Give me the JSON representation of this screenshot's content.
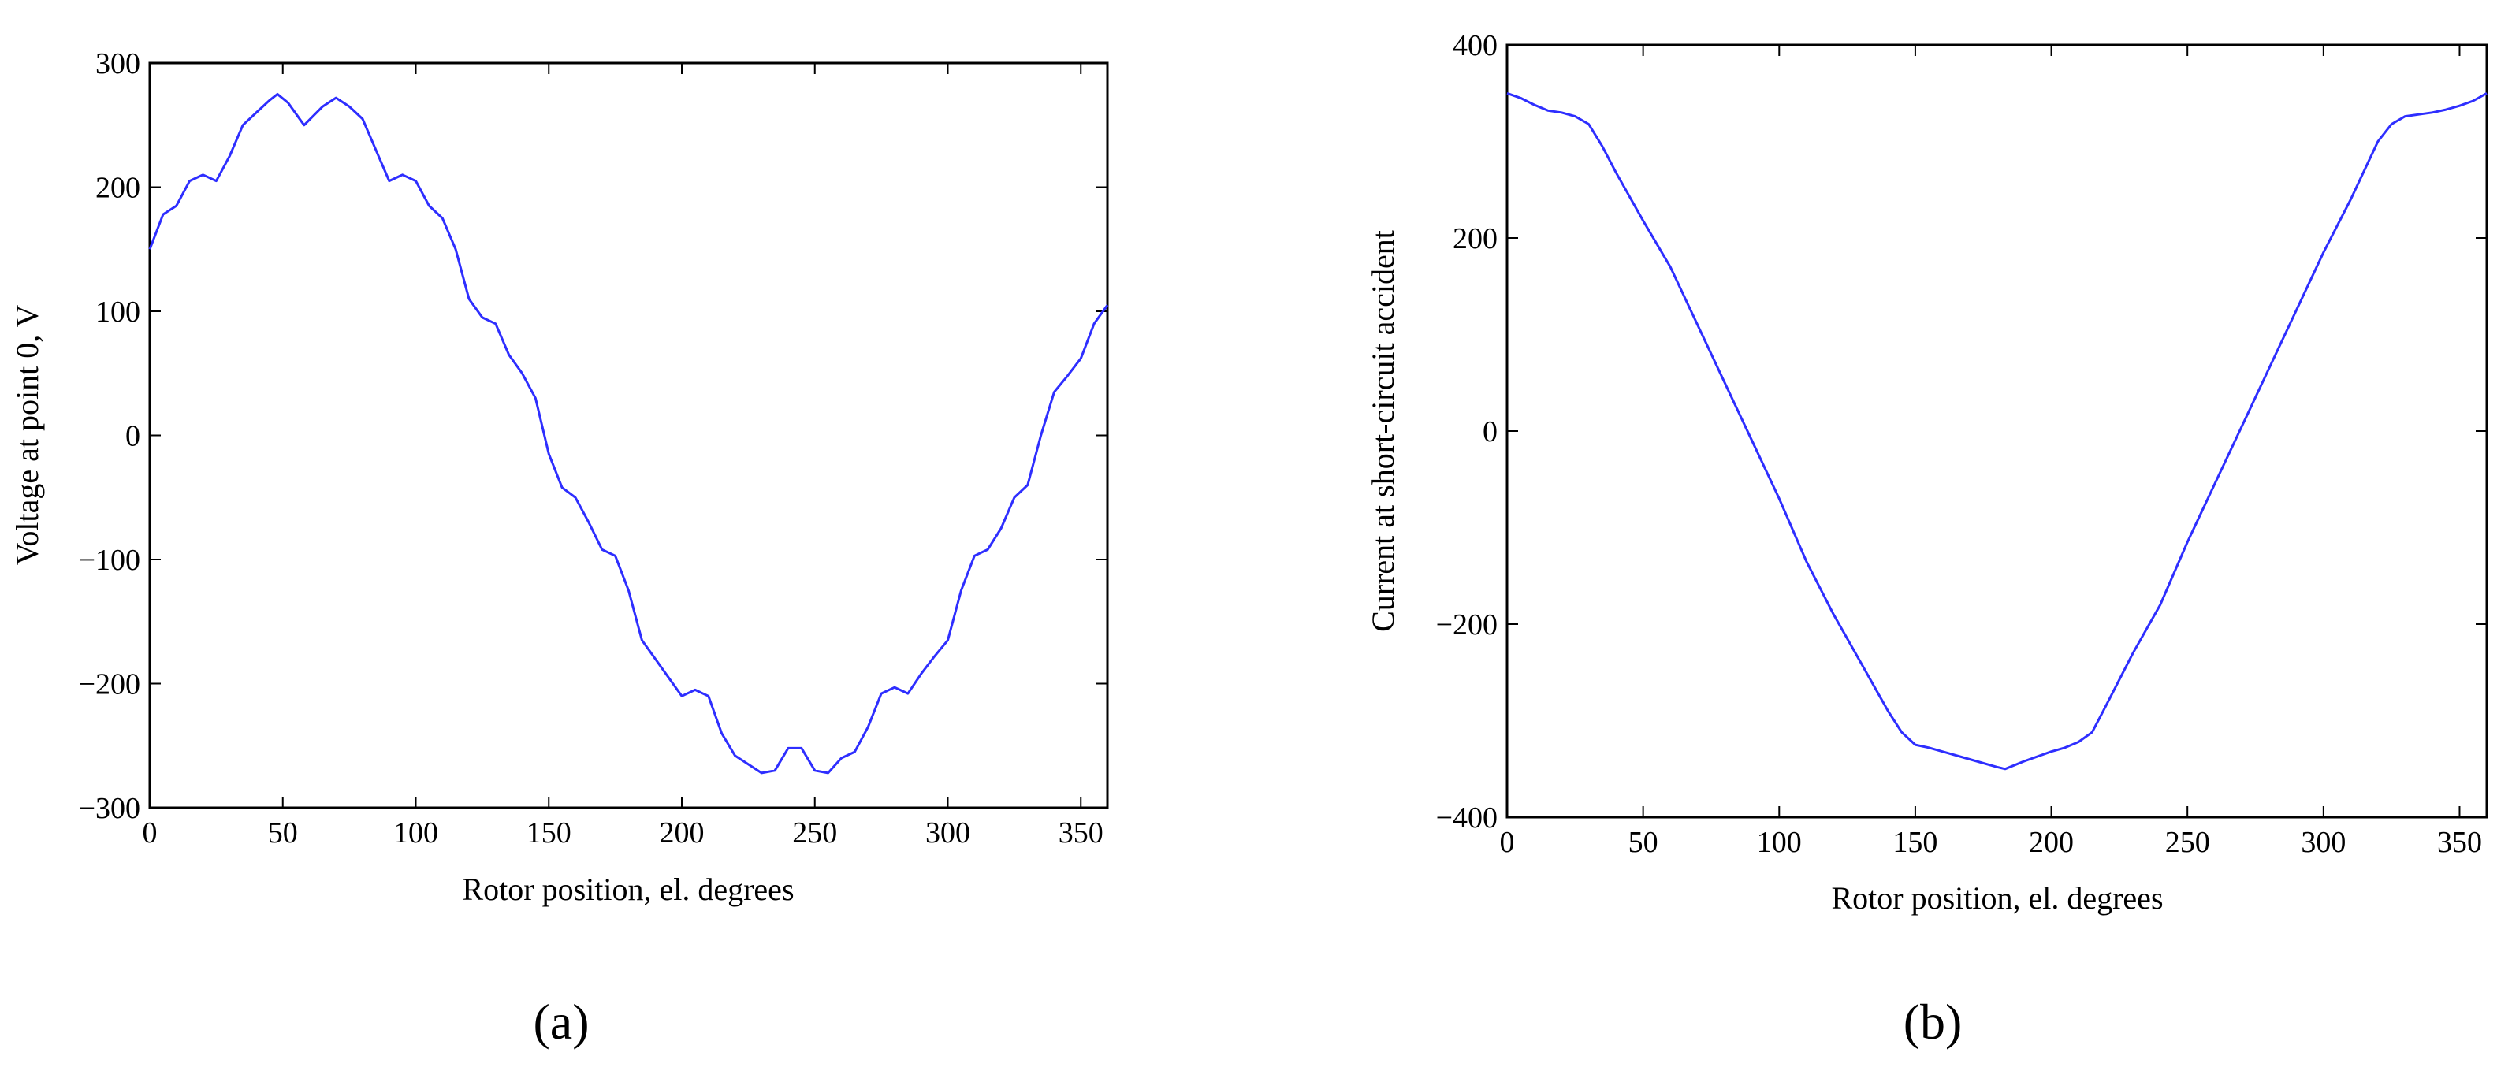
{
  "chart_data": [
    {
      "type": "line",
      "panel_label": "(a)",
      "xlabel": "Rotor position, el. degrees",
      "ylabel": "Voltage at point 0, V",
      "xlim": [
        0,
        360
      ],
      "ylim": [
        -300,
        300
      ],
      "xticks": [
        0,
        50,
        100,
        150,
        200,
        250,
        300,
        350
      ],
      "yticks": [
        -300,
        -200,
        -100,
        0,
        100,
        200,
        300
      ],
      "xtick_labels": [
        "0",
        "50",
        "100",
        "150",
        "200",
        "250",
        "300",
        "350"
      ],
      "ytick_labels": [
        "−300",
        "−200",
        "−100",
        "0",
        "100",
        "200",
        "300"
      ],
      "grid": false,
      "series": [
        {
          "color": "#2e2eff",
          "x": [
            0,
            5,
            10,
            15,
            20,
            25,
            30,
            35,
            40,
            45,
            48,
            52,
            58,
            65,
            70,
            75,
            80,
            85,
            90,
            95,
            100,
            105,
            110,
            115,
            120,
            125,
            130,
            135,
            140,
            145,
            150,
            155,
            160,
            165,
            170,
            175,
            180,
            185,
            190,
            195,
            200,
            205,
            210,
            215,
            220,
            225,
            230,
            235,
            240,
            245,
            250,
            255,
            260,
            265,
            270,
            275,
            280,
            285,
            290,
            295,
            300,
            305,
            310,
            315,
            320,
            325,
            330,
            335,
            340,
            345,
            350,
            355,
            360
          ],
          "y": [
            150,
            178,
            185,
            205,
            210,
            205,
            225,
            250,
            260,
            270,
            275,
            268,
            250,
            265,
            272,
            265,
            255,
            230,
            205,
            210,
            205,
            185,
            175,
            150,
            110,
            95,
            90,
            65,
            50,
            30,
            -15,
            -42,
            -50,
            -70,
            -92,
            -97,
            -125,
            -165,
            -180,
            -195,
            -210,
            -205,
            -210,
            -240,
            -258,
            -265,
            -272,
            -270,
            -252,
            -252,
            -270,
            -272,
            -260,
            -255,
            -235,
            -208,
            -203,
            -208,
            -192,
            -178,
            -165,
            -125,
            -97,
            -92,
            -75,
            -50,
            -40,
            0,
            35,
            48,
            62,
            90,
            105
          ]
        }
      ]
    },
    {
      "type": "line",
      "panel_label": "(b)",
      "xlabel": "Rotor position, el. degrees",
      "ylabel": "Current at short-circuit accident",
      "xlim": [
        0,
        360
      ],
      "ylim": [
        -400,
        400
      ],
      "xticks": [
        0,
        50,
        100,
        150,
        200,
        250,
        300,
        350
      ],
      "yticks": [
        -400,
        -200,
        0,
        200,
        400
      ],
      "xtick_labels": [
        "0",
        "50",
        "100",
        "150",
        "200",
        "250",
        "300",
        "350"
      ],
      "ytick_labels": [
        "−400",
        "−200",
        "0",
        "200",
        "400"
      ],
      "grid": false,
      "series": [
        {
          "color": "#2e2eff",
          "x": [
            0,
            5,
            10,
            15,
            20,
            25,
            30,
            35,
            40,
            50,
            60,
            70,
            80,
            90,
            100,
            110,
            120,
            130,
            140,
            145,
            150,
            155,
            160,
            170,
            180,
            183,
            190,
            200,
            205,
            210,
            215,
            220,
            230,
            240,
            250,
            260,
            270,
            280,
            290,
            300,
            310,
            320,
            325,
            330,
            335,
            340,
            345,
            350,
            355,
            360
          ],
          "y": [
            350,
            345,
            338,
            332,
            330,
            326,
            318,
            295,
            268,
            218,
            170,
            110,
            50,
            -10,
            -70,
            -135,
            -190,
            -240,
            -290,
            -312,
            -325,
            -328,
            -332,
            -340,
            -348,
            -350,
            -342,
            -332,
            -328,
            -322,
            -312,
            -285,
            -230,
            -180,
            -115,
            -55,
            5,
            65,
            125,
            185,
            240,
            300,
            318,
            326,
            328,
            330,
            333,
            337,
            342,
            350
          ]
        }
      ]
    }
  ]
}
